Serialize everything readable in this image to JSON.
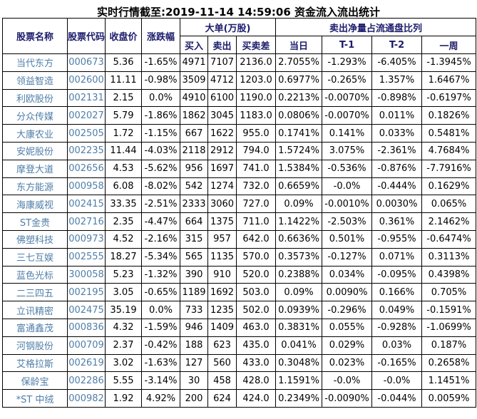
{
  "page": {
    "title": "实时行情截至:2019-11-14 14:59:06 资金流入流出统计"
  },
  "table": {
    "headers": {
      "stock_name": "股票名称",
      "stock_code": "股票代码",
      "close_price": "收盘价",
      "change_pct": "涨跌幅",
      "large_orders_group": "大单(万股)",
      "buy": "买入",
      "sell": "卖出",
      "buy_sell_diff": "买卖差",
      "net_sell_group": "卖出净量占流通盘比列",
      "day": "当日",
      "t1": "T-1",
      "t2": "T-2",
      "week": "一周"
    },
    "rows": [
      [
        "当代东方",
        "000673",
        "5.36",
        "-1.65%",
        "4971",
        "7107",
        "2136.0",
        "2.7055%",
        "-1.293%",
        "-6.405%",
        "-1.3945%"
      ],
      [
        "领益智造",
        "002600",
        "11.11",
        "-0.98%",
        "3509",
        "4712",
        "1203.0",
        "0.6977%",
        "-0.265%",
        "1.357%",
        "1.6467%"
      ],
      [
        "利欧股份",
        "002131",
        "2.15",
        "0.0%",
        "4910",
        "6100",
        "1190.0",
        "0.2213%",
        "-0.0070%",
        "-0.898%",
        "-0.6197%"
      ],
      [
        "分众传媒",
        "002027",
        "5.79",
        "-1.86%",
        "1862",
        "3045",
        "1183.0",
        "0.0806%",
        "-0.0070%",
        "0.011%",
        "0.1826%"
      ],
      [
        "大康农业",
        "002505",
        "1.72",
        "-1.15%",
        "667",
        "1622",
        "955.0",
        "0.1741%",
        "0.141%",
        "0.033%",
        "0.5481%"
      ],
      [
        "安妮股份",
        "002235",
        "11.44",
        "-4.03%",
        "2118",
        "2912",
        "794.0",
        "1.5724%",
        "3.075%",
        "-2.361%",
        "4.7684%"
      ],
      [
        "摩登大道",
        "002656",
        "4.53",
        "-5.62%",
        "956",
        "1697",
        "741.0",
        "1.5384%",
        "-0.536%",
        "-0.876%",
        "-7.7916%"
      ],
      [
        "东方能源",
        "000958",
        "6.08",
        "-8.02%",
        "542",
        "1274",
        "732.0",
        "0.6659%",
        "-0.0%",
        "-0.444%",
        "0.1629%"
      ],
      [
        "海康威视",
        "002415",
        "33.35",
        "-2.51%",
        "2333",
        "3060",
        "727.0",
        "0.09%",
        "-0.0010%",
        "0.0030%",
        "0.065%"
      ],
      [
        "ST金贵",
        "002716",
        "2.35",
        "-4.47%",
        "664",
        "1375",
        "711.0",
        "1.1422%",
        "-2.503%",
        "0.361%",
        "2.1462%"
      ],
      [
        "佛塑科技",
        "000973",
        "4.52",
        "-2.16%",
        "315",
        "957",
        "642.0",
        "0.6636%",
        "0.501%",
        "-0.955%",
        "-0.6474%"
      ],
      [
        "三七互娱",
        "002555",
        "18.27",
        "-5.34%",
        "565",
        "1135",
        "570.0",
        "0.3573%",
        "-0.127%",
        "0.071%",
        "0.3113%"
      ],
      [
        "蓝色光标",
        "300058",
        "5.23",
        "-1.32%",
        "390",
        "910",
        "520.0",
        "0.2388%",
        "0.034%",
        "-0.095%",
        "0.4398%"
      ],
      [
        "二三四五",
        "002195",
        "3.05",
        "-0.65%",
        "1189",
        "1692",
        "503.0",
        "0.09%",
        "0.0090%",
        "0.166%",
        "0.705%"
      ],
      [
        "立讯精密",
        "002475",
        "35.19",
        "0.0%",
        "733",
        "1235",
        "502.0",
        "0.0939%",
        "-0.296%",
        "0.049%",
        "-0.1591%"
      ],
      [
        "富通鑫茂",
        "000836",
        "4.32",
        "-1.59%",
        "946",
        "1409",
        "463.0",
        "0.3831%",
        "0.055%",
        "-0.928%",
        "-1.0699%"
      ],
      [
        "河钢股份",
        "000709",
        "2.37",
        "-0.42%",
        "188",
        "623",
        "435.0",
        "0.041%",
        "0.029%",
        "0.03%",
        "0.187%"
      ],
      [
        "艾格拉斯",
        "002619",
        "3.02",
        "-1.63%",
        "127",
        "560",
        "433.0",
        "0.3048%",
        "0.023%",
        "-0.165%",
        "0.2658%"
      ],
      [
        "保龄宝",
        "002286",
        "5.55",
        "-3.14%",
        "30",
        "458",
        "428.0",
        "1.1591%",
        "-0.0%",
        "-0.0%",
        "1.1451%"
      ],
      [
        "*ST 中绒",
        "000982",
        "1.92",
        "4.92%",
        "200",
        "624",
        "424.0",
        "0.2349%",
        "-0.0090%",
        "-0.044%",
        "0.0059%"
      ]
    ]
  },
  "colors": {
    "header_text": "#1b1b6b",
    "stock_link": "#4f7ea8",
    "cell_text": "#000000",
    "border": "#000000",
    "page_background": "#ffffff"
  }
}
